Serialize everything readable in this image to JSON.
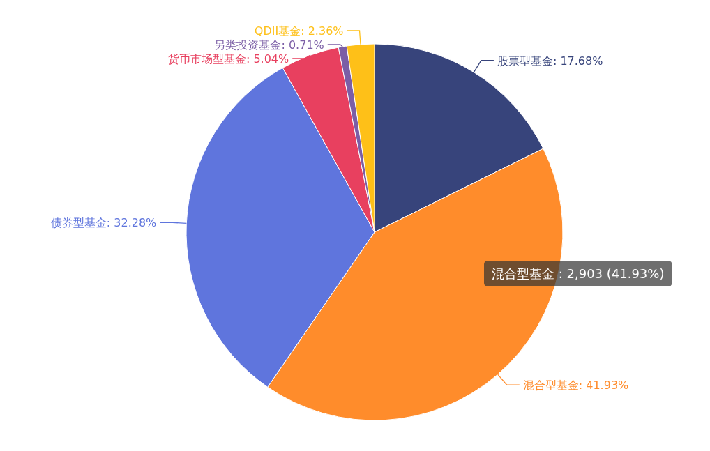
{
  "chart_data": {
    "type": "pie",
    "categories": [
      "股票型基金",
      "混合型基金",
      "债券型基金",
      "货币市场型基金",
      "另类投资基金",
      "QDII基金"
    ],
    "values": [
      17.68,
      41.93,
      32.28,
      5.04,
      0.71,
      2.36
    ],
    "value_labels": [
      "17.68%",
      "41.93%",
      "32.28%",
      "5.04%",
      "0.71%",
      "2.36%"
    ],
    "colors": [
      "#37447b",
      "#ff8c2b",
      "#5f75dd",
      "#e8405f",
      "#7b5ea6",
      "#fec018"
    ],
    "annotations": [
      "混合型基金 : 2,903 (41.93%)"
    ]
  }
}
